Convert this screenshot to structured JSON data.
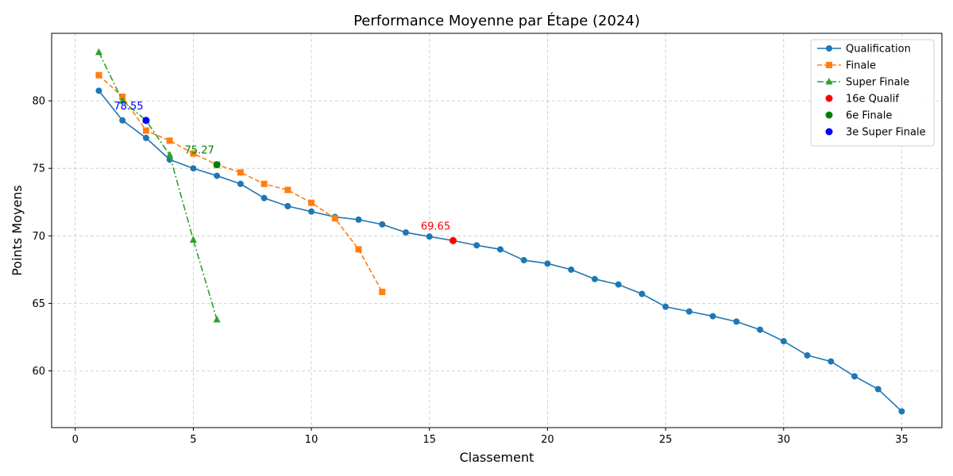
{
  "chart_data": {
    "type": "line",
    "title": "Performance Moyenne par Étape (2024)",
    "xlabel": "Classement",
    "ylabel": "Points Moyens",
    "xlim": [
      -1,
      36.7
    ],
    "ylim": [
      55.8,
      85
    ],
    "x_ticks": [
      0,
      5,
      10,
      15,
      20,
      25,
      30,
      35
    ],
    "y_ticks": [
      60,
      65,
      70,
      75,
      80
    ],
    "grid": true,
    "legend_position": "top-right",
    "series": [
      {
        "name": "Qualification",
        "color": "#1f77b4",
        "marker": "circle",
        "line_style": "solid",
        "x": [
          1,
          2,
          3,
          4,
          5,
          6,
          7,
          8,
          9,
          10,
          11,
          12,
          13,
          14,
          15,
          16,
          17,
          18,
          19,
          20,
          21,
          22,
          23,
          24,
          25,
          26,
          27,
          28,
          29,
          30,
          31,
          32,
          33,
          34,
          35
        ],
        "y": [
          80.75,
          78.55,
          77.25,
          75.65,
          75.0,
          74.45,
          73.85,
          72.8,
          72.2,
          71.8,
          71.4,
          71.2,
          70.85,
          70.25,
          69.95,
          69.65,
          69.3,
          69.0,
          68.2,
          67.95,
          67.5,
          66.8,
          66.4,
          65.7,
          64.75,
          64.4,
          64.05,
          63.65,
          63.05,
          62.2,
          61.15,
          60.7,
          59.6,
          58.65,
          57.0
        ]
      },
      {
        "name": "Finale",
        "color": "#ff7f0e",
        "marker": "square",
        "line_style": "dashed",
        "x": [
          1,
          2,
          3,
          4,
          5,
          6,
          7,
          8,
          9,
          10,
          11,
          12,
          13
        ],
        "y": [
          81.9,
          80.3,
          77.8,
          77.05,
          76.1,
          75.27,
          74.7,
          73.85,
          73.4,
          72.45,
          71.3,
          69.0,
          65.85
        ]
      },
      {
        "name": "Super Finale",
        "color": "#2ca02c",
        "marker": "triangle",
        "line_style": "dashdot",
        "x": [
          1,
          2,
          3,
          4,
          5,
          6
        ],
        "y": [
          83.6,
          80.0,
          78.55,
          76.0,
          69.7,
          63.8
        ]
      }
    ],
    "highlights": [
      {
        "name": "16e Qualif",
        "color": "#ff0000",
        "x": 16,
        "y": 69.65,
        "label": "69.65"
      },
      {
        "name": "6e Finale",
        "color": "#008000",
        "x": 6,
        "y": 75.27,
        "label": "75.27"
      },
      {
        "name": "3e Super Finale",
        "color": "#0000ff",
        "x": 3,
        "y": 78.55,
        "label": "78.55"
      }
    ]
  }
}
